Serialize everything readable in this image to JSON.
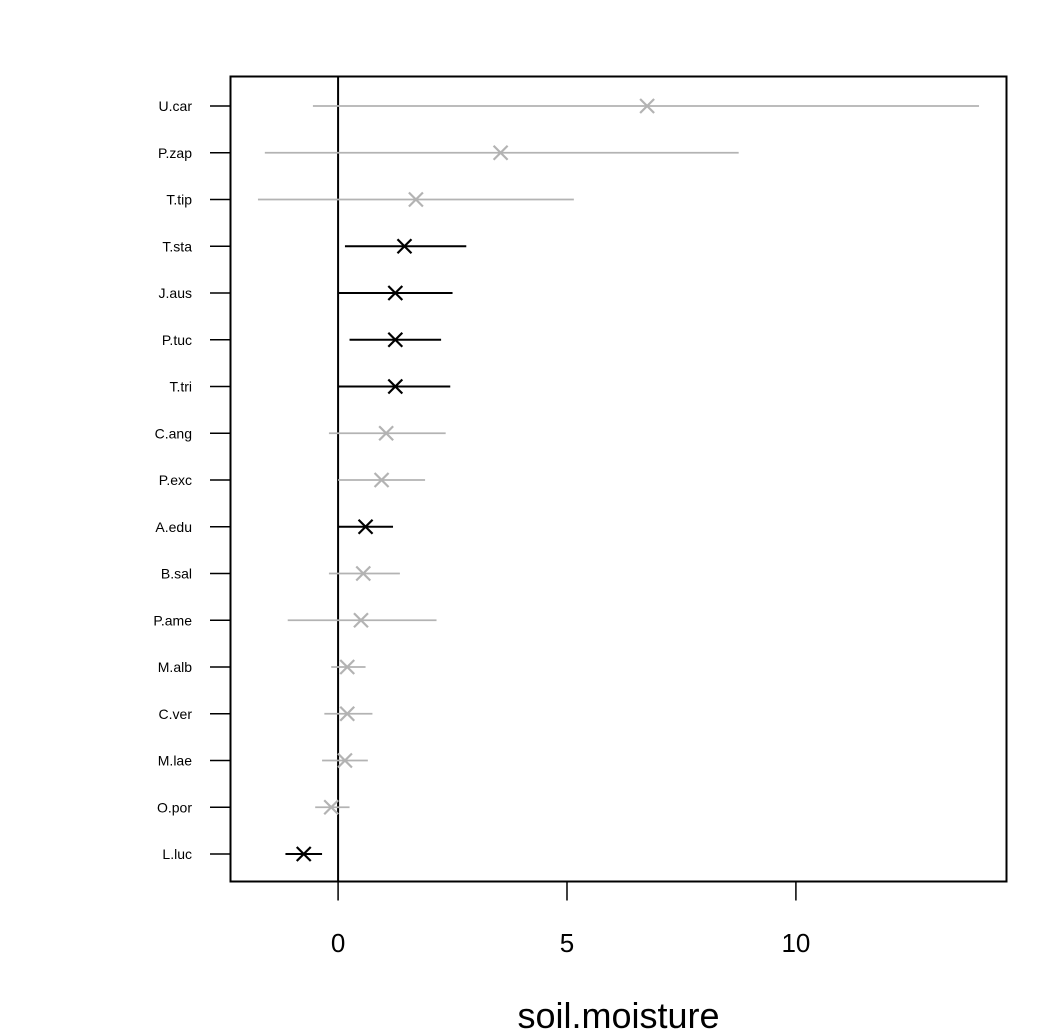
{
  "chart_data": {
    "type": "scatter",
    "title": "",
    "xlabel": "soil.moisture",
    "ylabel": "",
    "xlim": [
      -2.35,
      14.6
    ],
    "x_ticks": [
      0,
      5,
      10
    ],
    "x_tick_labels": [
      "0",
      "5",
      "10"
    ],
    "reference_line_x": 0,
    "grid": false,
    "legend": "none",
    "colors": {
      "significant": "#000000",
      "non_significant": "#b3b3b3"
    },
    "categories": [
      "U.car",
      "P.zap",
      "T.tip",
      "T.sta",
      "J.aus",
      "P.tuc",
      "T.tri",
      "C.ang",
      "P.exc",
      "A.edu",
      "B.sal",
      "P.ame",
      "M.alb",
      "C.ver",
      "M.lae",
      "O.por",
      "L.luc"
    ],
    "series": [
      {
        "estimate": [
          6.75,
          3.55,
          1.7,
          1.45,
          1.25,
          1.25,
          1.25,
          1.05,
          0.95,
          0.6,
          0.55,
          0.5,
          0.2,
          0.2,
          0.15,
          -0.15,
          -0.75
        ],
        "lower": [
          -0.55,
          -1.6,
          -1.75,
          0.15,
          0.0,
          0.25,
          0.0,
          -0.2,
          0.0,
          0.0,
          -0.2,
          -1.1,
          -0.15,
          -0.3,
          -0.35,
          -0.5,
          -1.15
        ],
        "upper": [
          14.0,
          8.75,
          5.15,
          2.8,
          2.5,
          2.25,
          2.45,
          2.35,
          1.9,
          1.2,
          1.35,
          2.15,
          0.6,
          0.75,
          0.65,
          0.25,
          -0.35
        ],
        "significant": [
          false,
          false,
          false,
          true,
          true,
          true,
          true,
          false,
          false,
          true,
          false,
          false,
          false,
          false,
          false,
          false,
          true
        ]
      }
    ]
  }
}
